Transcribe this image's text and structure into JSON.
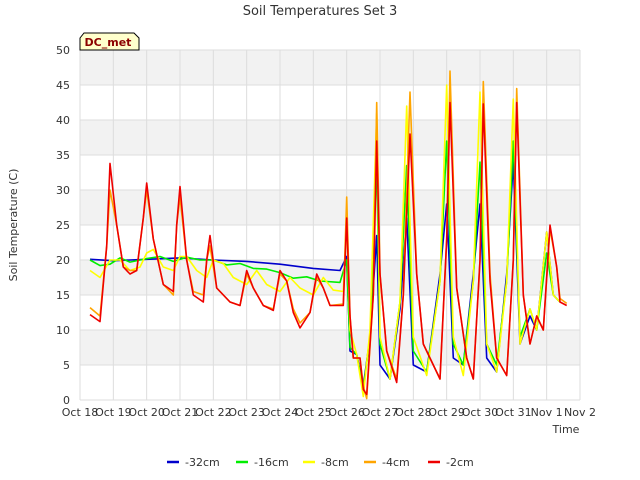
{
  "chart_data": {
    "type": "line",
    "title": "Soil Temperatures Set 3",
    "xlabel": "Time",
    "ylabel": "Soil Temperature (C)",
    "site_badge": "DC_met",
    "ylim": [
      0,
      50
    ],
    "yticks": [
      0,
      5,
      10,
      15,
      20,
      25,
      30,
      35,
      40,
      45,
      50
    ],
    "xlim": [
      0,
      15
    ],
    "xticks": [
      {
        "v": 0,
        "label": "Oct 18"
      },
      {
        "v": 1,
        "label": "Oct 19"
      },
      {
        "v": 2,
        "label": "Oct 20"
      },
      {
        "v": 3,
        "label": "Oct 21"
      },
      {
        "v": 4,
        "label": "Oct 22"
      },
      {
        "v": 5,
        "label": "Oct 23"
      },
      {
        "v": 6,
        "label": "Oct 24"
      },
      {
        "v": 7,
        "label": "Oct 25"
      },
      {
        "v": 8,
        "label": "Oct 26"
      },
      {
        "v": 9,
        "label": "Oct 27"
      },
      {
        "v": 10,
        "label": "Oct 28"
      },
      {
        "v": 11,
        "label": "Oct 29"
      },
      {
        "v": 12,
        "label": "Oct 30"
      },
      {
        "v": 13,
        "label": "Oct 31"
      },
      {
        "v": 14,
        "label": "Nov 1"
      },
      {
        "v": 15,
        "label": "Nov 2"
      }
    ],
    "grid": true,
    "banded_background": true,
    "legend_position": "bottom",
    "series": [
      {
        "name": "-32cm",
        "color": "#0000cc",
        "points": [
          [
            0.3,
            20.1
          ],
          [
            1.0,
            19.9
          ],
          [
            2.0,
            20.1
          ],
          [
            3.0,
            20.3
          ],
          [
            4.0,
            20.0
          ],
          [
            5.0,
            19.8
          ],
          [
            6.0,
            19.4
          ],
          [
            7.0,
            18.8
          ],
          [
            7.8,
            18.5
          ],
          [
            8.0,
            20.5
          ],
          [
            8.1,
            7.0
          ],
          [
            8.3,
            6.5
          ],
          [
            8.5,
            2.0
          ],
          [
            8.7,
            9.0
          ],
          [
            8.9,
            23.5
          ],
          [
            9.0,
            5.0
          ],
          [
            9.3,
            3.0
          ],
          [
            9.6,
            13.0
          ],
          [
            9.8,
            26.0
          ],
          [
            10.0,
            5.0
          ],
          [
            10.4,
            4.0
          ],
          [
            10.8,
            18.0
          ],
          [
            11.0,
            28.0
          ],
          [
            11.2,
            6.0
          ],
          [
            11.5,
            5.0
          ],
          [
            11.8,
            18.0
          ],
          [
            12.0,
            28.0
          ],
          [
            12.2,
            6.0
          ],
          [
            12.5,
            4.0
          ],
          [
            12.8,
            18.0
          ],
          [
            13.0,
            34.0
          ],
          [
            13.2,
            8.0
          ],
          [
            13.5,
            12.0
          ],
          [
            13.7,
            10.0
          ],
          [
            14.0,
            24.0
          ],
          [
            14.2,
            15.0
          ],
          [
            14.4,
            14.0
          ]
        ]
      },
      {
        "name": "-16cm",
        "color": "#00ee00",
        "points": [
          [
            0.3,
            20.0
          ],
          [
            0.6,
            19.2
          ],
          [
            0.9,
            19.4
          ],
          [
            1.2,
            20.3
          ],
          [
            1.5,
            19.7
          ],
          [
            2.0,
            20.2
          ],
          [
            2.4,
            20.5
          ],
          [
            2.8,
            19.8
          ],
          [
            3.2,
            20.4
          ],
          [
            3.6,
            20.0
          ],
          [
            4.0,
            20.0
          ],
          [
            4.4,
            19.3
          ],
          [
            4.8,
            19.5
          ],
          [
            5.2,
            18.8
          ],
          [
            5.6,
            18.7
          ],
          [
            6.0,
            18.2
          ],
          [
            6.4,
            17.4
          ],
          [
            6.8,
            17.6
          ],
          [
            7.2,
            17.0
          ],
          [
            7.8,
            16.8
          ],
          [
            8.0,
            20.0
          ],
          [
            8.1,
            7.5
          ],
          [
            8.3,
            6.5
          ],
          [
            8.5,
            1.5
          ],
          [
            8.7,
            9.0
          ],
          [
            8.9,
            34.0
          ],
          [
            9.0,
            8.0
          ],
          [
            9.3,
            3.0
          ],
          [
            9.6,
            14.0
          ],
          [
            9.8,
            33.5
          ],
          [
            10.0,
            7.0
          ],
          [
            10.4,
            4.0
          ],
          [
            10.8,
            17.0
          ],
          [
            11.0,
            37.0
          ],
          [
            11.2,
            8.0
          ],
          [
            11.5,
            5.0
          ],
          [
            11.8,
            17.0
          ],
          [
            12.0,
            34.0
          ],
          [
            12.2,
            8.0
          ],
          [
            12.5,
            5.0
          ],
          [
            12.8,
            17.0
          ],
          [
            13.0,
            37.0
          ],
          [
            13.2,
            9.0
          ],
          [
            13.5,
            13.0
          ],
          [
            13.7,
            10.0
          ],
          [
            14.0,
            21.0
          ],
          [
            14.2,
            15.0
          ],
          [
            14.4,
            14.0
          ]
        ]
      },
      {
        "name": "-8cm",
        "color": "#ffff00",
        "points": [
          [
            0.3,
            18.5
          ],
          [
            0.6,
            17.5
          ],
          [
            0.9,
            20.0
          ],
          [
            1.2,
            20.0
          ],
          [
            1.5,
            18.5
          ],
          [
            1.8,
            19.0
          ],
          [
            2.0,
            21.0
          ],
          [
            2.2,
            21.5
          ],
          [
            2.5,
            19.0
          ],
          [
            2.8,
            18.5
          ],
          [
            3.0,
            20.5
          ],
          [
            3.2,
            20.5
          ],
          [
            3.5,
            18.5
          ],
          [
            3.8,
            17.5
          ],
          [
            4.0,
            20.0
          ],
          [
            4.3,
            19.5
          ],
          [
            4.6,
            17.5
          ],
          [
            5.0,
            16.5
          ],
          [
            5.3,
            18.5
          ],
          [
            5.6,
            16.5
          ],
          [
            6.0,
            15.5
          ],
          [
            6.3,
            17.5
          ],
          [
            6.6,
            16.0
          ],
          [
            7.0,
            15.0
          ],
          [
            7.3,
            17.5
          ],
          [
            7.6,
            15.7
          ],
          [
            7.9,
            15.5
          ],
          [
            8.0,
            26.0
          ],
          [
            8.1,
            10.0
          ],
          [
            8.3,
            6.5
          ],
          [
            8.5,
            0.5
          ],
          [
            8.7,
            10.0
          ],
          [
            8.9,
            41.0
          ],
          [
            9.0,
            9.0
          ],
          [
            9.3,
            3.0
          ],
          [
            9.6,
            14.0
          ],
          [
            9.8,
            42.0
          ],
          [
            10.0,
            9.0
          ],
          [
            10.4,
            3.5
          ],
          [
            10.8,
            17.0
          ],
          [
            11.0,
            45.0
          ],
          [
            11.2,
            9.0
          ],
          [
            11.5,
            3.5
          ],
          [
            11.8,
            17.0
          ],
          [
            12.0,
            44.0
          ],
          [
            12.2,
            8.0
          ],
          [
            12.5,
            4.0
          ],
          [
            12.8,
            17.0
          ],
          [
            13.0,
            43.0
          ],
          [
            13.2,
            8.0
          ],
          [
            13.5,
            13.0
          ],
          [
            13.7,
            10.0
          ],
          [
            14.0,
            24.0
          ],
          [
            14.2,
            15.0
          ],
          [
            14.4,
            14.0
          ]
        ]
      },
      {
        "name": "-4cm",
        "color": "#ffa500",
        "points": [
          [
            0.3,
            13.2
          ],
          [
            0.6,
            12.0
          ],
          [
            0.8,
            22.0
          ],
          [
            0.9,
            30.0
          ],
          [
            1.1,
            25.0
          ],
          [
            1.3,
            19.0
          ],
          [
            1.5,
            18.5
          ],
          [
            1.7,
            18.5
          ],
          [
            1.9,
            26.0
          ],
          [
            2.0,
            30.0
          ],
          [
            2.2,
            23.0
          ],
          [
            2.5,
            16.5
          ],
          [
            2.8,
            15.0
          ],
          [
            2.9,
            25.0
          ],
          [
            3.0,
            29.0
          ],
          [
            3.2,
            20.0
          ],
          [
            3.4,
            15.5
          ],
          [
            3.7,
            15.0
          ],
          [
            3.8,
            20.0
          ],
          [
            3.9,
            22.0
          ],
          [
            4.1,
            16.0
          ],
          [
            4.5,
            14.0
          ],
          [
            4.8,
            13.5
          ],
          [
            5.0,
            18.0
          ],
          [
            5.2,
            16.0
          ],
          [
            5.5,
            13.5
          ],
          [
            5.8,
            13.0
          ],
          [
            6.0,
            18.0
          ],
          [
            6.2,
            17.0
          ],
          [
            6.4,
            13.0
          ],
          [
            6.6,
            11.0
          ],
          [
            6.9,
            12.5
          ],
          [
            7.1,
            17.5
          ],
          [
            7.3,
            16.0
          ],
          [
            7.5,
            13.5
          ],
          [
            7.9,
            13.7
          ],
          [
            8.0,
            29.0
          ],
          [
            8.1,
            12.0
          ],
          [
            8.2,
            6.0
          ],
          [
            8.4,
            6.0
          ],
          [
            8.5,
            2.0
          ],
          [
            8.6,
            0.2
          ],
          [
            8.8,
            15.0
          ],
          [
            8.9,
            42.5
          ],
          [
            9.0,
            18.0
          ],
          [
            9.2,
            7.0
          ],
          [
            9.5,
            3.0
          ],
          [
            9.7,
            15.0
          ],
          [
            9.9,
            44.0
          ],
          [
            10.1,
            18.0
          ],
          [
            10.3,
            8.0
          ],
          [
            10.6,
            5.0
          ],
          [
            10.8,
            3.0
          ],
          [
            11.0,
            23.0
          ],
          [
            11.1,
            47.0
          ],
          [
            11.3,
            16.0
          ],
          [
            11.6,
            6.0
          ],
          [
            11.8,
            3.0
          ],
          [
            12.0,
            20.0
          ],
          [
            12.1,
            45.5
          ],
          [
            12.3,
            18.0
          ],
          [
            12.5,
            6.0
          ],
          [
            12.8,
            3.5
          ],
          [
            13.0,
            20.0
          ],
          [
            13.1,
            44.5
          ],
          [
            13.3,
            15.0
          ],
          [
            13.5,
            8.0
          ],
          [
            13.7,
            12.0
          ],
          [
            13.9,
            10.0
          ],
          [
            14.1,
            24.5
          ],
          [
            14.3,
            19.0
          ],
          [
            14.4,
            14.5
          ],
          [
            14.6,
            13.8
          ]
        ]
      },
      {
        "name": "-2cm",
        "color": "#ee0000",
        "points": [
          [
            0.3,
            12.2
          ],
          [
            0.6,
            11.2
          ],
          [
            0.8,
            22.0
          ],
          [
            0.9,
            33.8
          ],
          [
            1.1,
            25.0
          ],
          [
            1.3,
            19.0
          ],
          [
            1.5,
            18.0
          ],
          [
            1.7,
            18.5
          ],
          [
            1.9,
            26.0
          ],
          [
            2.0,
            31.0
          ],
          [
            2.2,
            23.0
          ],
          [
            2.5,
            16.5
          ],
          [
            2.8,
            15.5
          ],
          [
            2.9,
            25.0
          ],
          [
            3.0,
            30.5
          ],
          [
            3.2,
            20.0
          ],
          [
            3.4,
            15.0
          ],
          [
            3.7,
            14.0
          ],
          [
            3.8,
            20.0
          ],
          [
            3.9,
            23.5
          ],
          [
            4.1,
            16.0
          ],
          [
            4.5,
            14.0
          ],
          [
            4.8,
            13.5
          ],
          [
            5.0,
            18.5
          ],
          [
            5.2,
            16.0
          ],
          [
            5.5,
            13.5
          ],
          [
            5.8,
            12.8
          ],
          [
            6.0,
            18.5
          ],
          [
            6.2,
            17.0
          ],
          [
            6.4,
            12.5
          ],
          [
            6.6,
            10.3
          ],
          [
            6.9,
            12.5
          ],
          [
            7.1,
            18.0
          ],
          [
            7.3,
            16.0
          ],
          [
            7.5,
            13.5
          ],
          [
            7.9,
            13.5
          ],
          [
            8.0,
            26.0
          ],
          [
            8.1,
            12.0
          ],
          [
            8.2,
            6.0
          ],
          [
            8.4,
            6.0
          ],
          [
            8.5,
            1.5
          ],
          [
            8.6,
            0.8
          ],
          [
            8.8,
            15.0
          ],
          [
            8.9,
            37.0
          ],
          [
            9.0,
            18.0
          ],
          [
            9.2,
            7.0
          ],
          [
            9.5,
            2.5
          ],
          [
            9.7,
            15.0
          ],
          [
            9.9,
            38.0
          ],
          [
            10.1,
            18.0
          ],
          [
            10.3,
            8.0
          ],
          [
            10.6,
            5.0
          ],
          [
            10.8,
            3.0
          ],
          [
            11.0,
            23.0
          ],
          [
            11.1,
            42.5
          ],
          [
            11.3,
            16.0
          ],
          [
            11.6,
            6.0
          ],
          [
            11.8,
            3.0
          ],
          [
            12.0,
            20.0
          ],
          [
            12.1,
            42.3
          ],
          [
            12.3,
            17.0
          ],
          [
            12.5,
            6.0
          ],
          [
            12.8,
            3.5
          ],
          [
            13.0,
            20.0
          ],
          [
            13.1,
            42.5
          ],
          [
            13.3,
            15.0
          ],
          [
            13.5,
            8.0
          ],
          [
            13.7,
            12.0
          ],
          [
            13.9,
            10.0
          ],
          [
            14.1,
            25.0
          ],
          [
            14.3,
            19.0
          ],
          [
            14.4,
            14.0
          ],
          [
            14.6,
            13.5
          ]
        ]
      }
    ]
  }
}
